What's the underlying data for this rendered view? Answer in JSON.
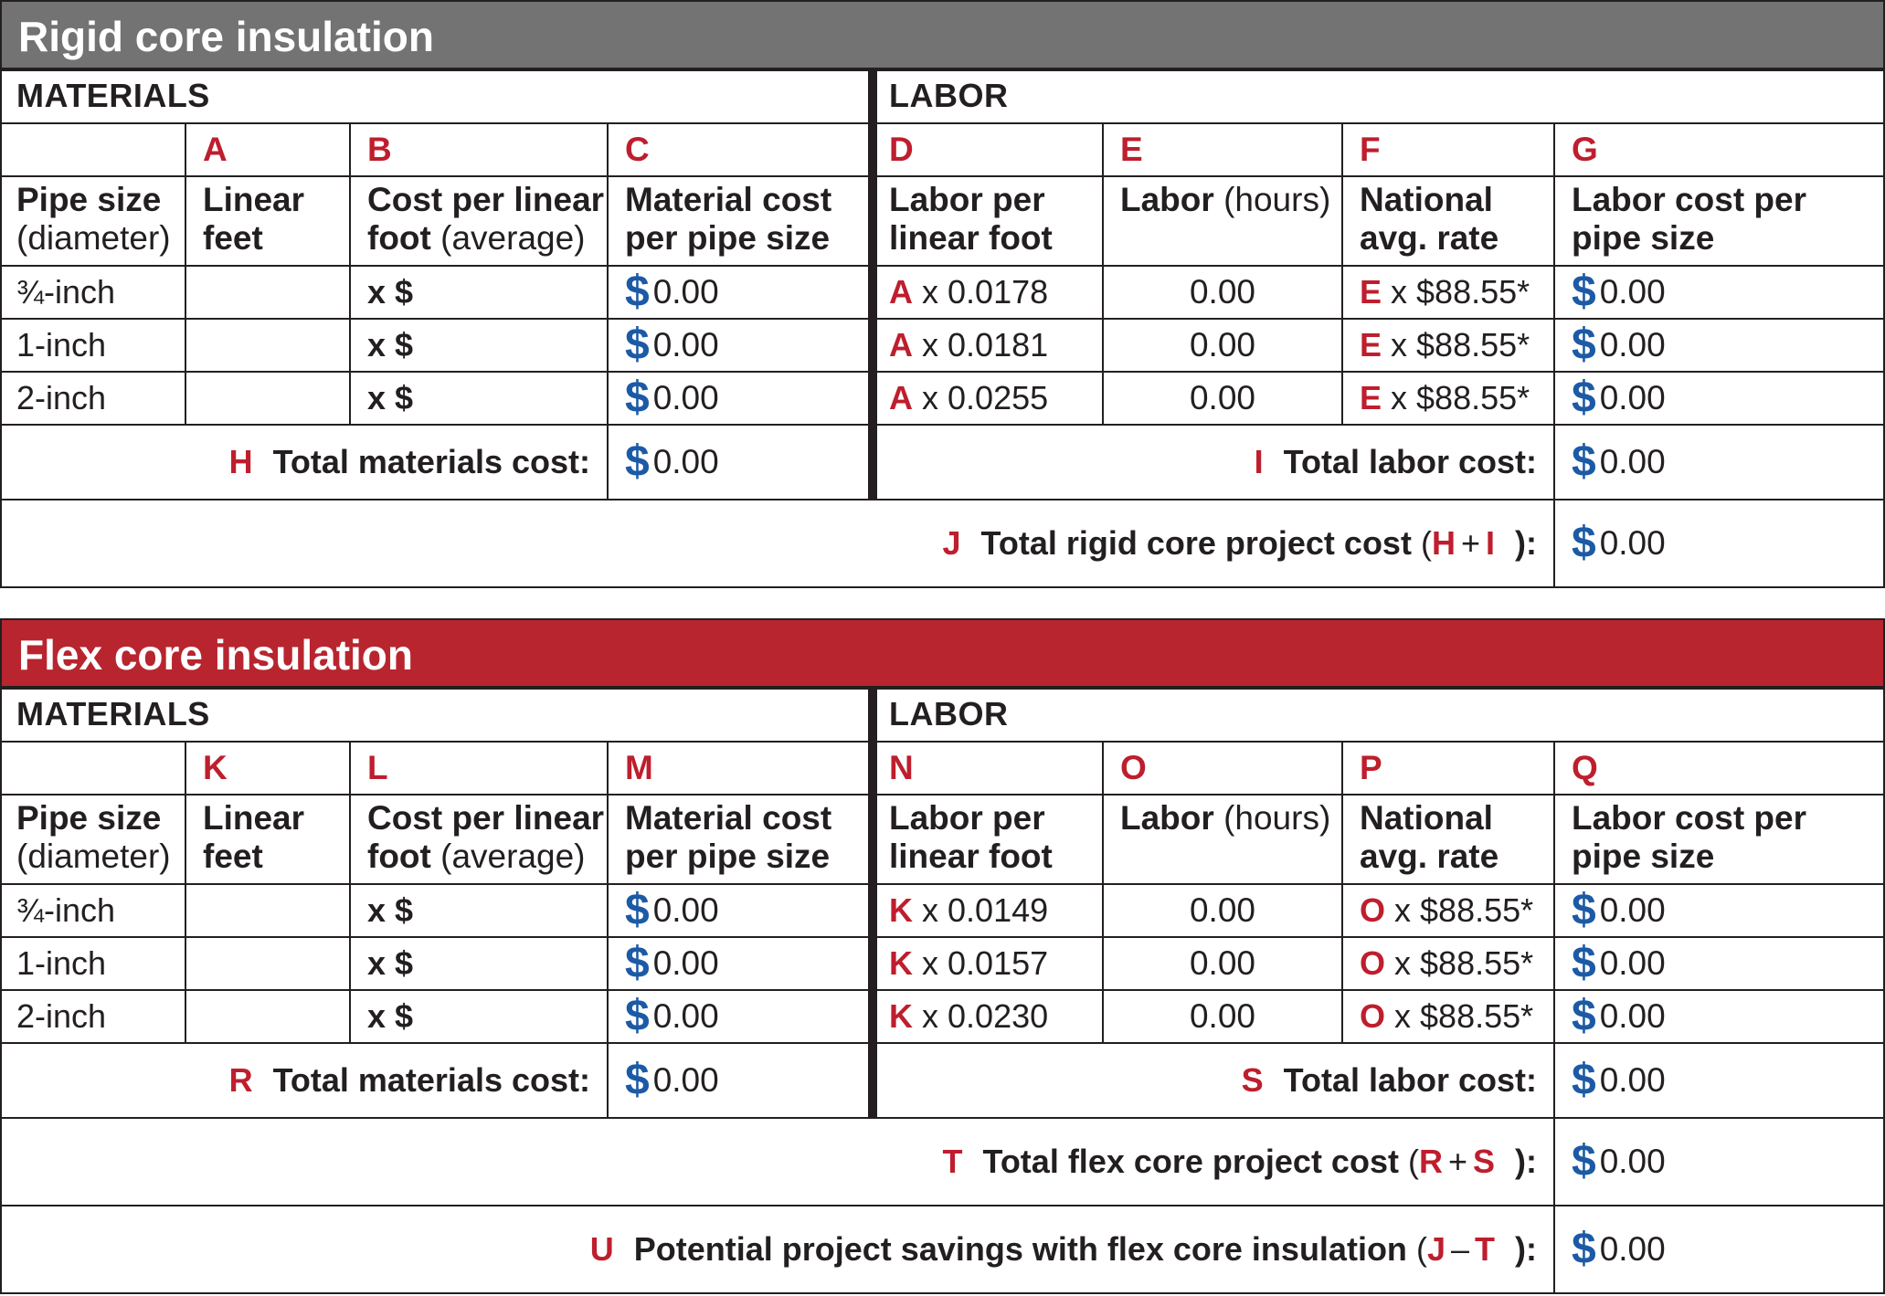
{
  "colors": {
    "rigid_band": "#737373",
    "flex_band": "#b8252f",
    "letter_red": "#be1e2d",
    "dollar_blue": "#1c5aa6"
  },
  "rigid": {
    "title": "Rigid core insulation",
    "materials_label": "MATERIALS",
    "labor_label": "LABOR",
    "letters": [
      "A",
      "B",
      "C",
      "D",
      "E",
      "F",
      "G"
    ],
    "headers": {
      "pipe_size": "Pipe size",
      "pipe_size_sub": "(diameter)",
      "linear_feet_1": "Linear",
      "linear_feet_2": "feet",
      "cost_per_1": "Cost per linear",
      "cost_per_2": "foot",
      "cost_per_sub": "(average)",
      "material_cost_1": "Material cost",
      "material_cost_2": "per pipe size",
      "labor_per_1": "Labor per",
      "labor_per_2": "linear foot",
      "labor_hours": "Labor",
      "labor_hours_sub": "(hours)",
      "national_1": "National",
      "national_2": "avg. rate",
      "labor_cost_1": "Labor cost per",
      "labor_cost_2": "pipe size"
    },
    "rows": [
      {
        "size": "¾-inch",
        "linear_feet": "",
        "cost_prefix": "x $",
        "material_cost": "0.00",
        "labor_letter": "A",
        "labor_factor": "x 0.0178",
        "hours": "0.00",
        "rate_letter": "E",
        "rate": "x $88.55*",
        "labor_cost": "0.00"
      },
      {
        "size": "1-inch",
        "linear_feet": "",
        "cost_prefix": "x $",
        "material_cost": "0.00",
        "labor_letter": "A",
        "labor_factor": "x 0.0181",
        "hours": "0.00",
        "rate_letter": "E",
        "rate": "x $88.55*",
        "labor_cost": "0.00"
      },
      {
        "size": "2-inch",
        "linear_feet": "",
        "cost_prefix": "x $",
        "material_cost": "0.00",
        "labor_letter": "A",
        "labor_factor": "x 0.0255",
        "hours": "0.00",
        "rate_letter": "E",
        "rate": "x $88.55*",
        "labor_cost": "0.00"
      }
    ],
    "total_materials": {
      "letter": "H",
      "label": "Total materials cost:",
      "value": "0.00"
    },
    "total_labor": {
      "letter": "I",
      "label": "Total labor cost:",
      "value": "0.00"
    },
    "total_project": {
      "letter": "J",
      "label": "Total rigid core project cost",
      "open": "(",
      "a": "H",
      "op": "+",
      "b": "I",
      "close": "):",
      "value": "0.00"
    }
  },
  "flex": {
    "title": "Flex core insulation",
    "materials_label": "MATERIALS",
    "labor_label": "LABOR",
    "letters": [
      "K",
      "L",
      "M",
      "N",
      "O",
      "P",
      "Q"
    ],
    "headers": {
      "pipe_size": "Pipe size",
      "pipe_size_sub": "(diameter)",
      "linear_feet_1": "Linear",
      "linear_feet_2": "feet",
      "cost_per_1": "Cost per linear",
      "cost_per_2": "foot",
      "cost_per_sub": "(average)",
      "material_cost_1": "Material cost",
      "material_cost_2": "per pipe size",
      "labor_per_1": "Labor per",
      "labor_per_2": "linear foot",
      "labor_hours": "Labor",
      "labor_hours_sub": "(hours)",
      "national_1": "National",
      "national_2": "avg. rate",
      "labor_cost_1": "Labor cost per",
      "labor_cost_2": "pipe size"
    },
    "rows": [
      {
        "size": "¾-inch",
        "linear_feet": "",
        "cost_prefix": "x $",
        "material_cost": "0.00",
        "labor_letter": "K",
        "labor_factor": "x 0.0149",
        "hours": "0.00",
        "rate_letter": "O",
        "rate": "x $88.55*",
        "labor_cost": "0.00"
      },
      {
        "size": "1-inch",
        "linear_feet": "",
        "cost_prefix": "x $",
        "material_cost": "0.00",
        "labor_letter": "K",
        "labor_factor": "x 0.0157",
        "hours": "0.00",
        "rate_letter": "O",
        "rate": "x $88.55*",
        "labor_cost": "0.00"
      },
      {
        "size": "2-inch",
        "linear_feet": "",
        "cost_prefix": "x $",
        "material_cost": "0.00",
        "labor_letter": "K",
        "labor_factor": "x 0.0230",
        "hours": "0.00",
        "rate_letter": "O",
        "rate": "x $88.55*",
        "labor_cost": "0.00"
      }
    ],
    "total_materials": {
      "letter": "R",
      "label": "Total materials cost:",
      "value": "0.00"
    },
    "total_labor": {
      "letter": "S",
      "label": "Total labor cost:",
      "value": "0.00"
    },
    "total_project": {
      "letter": "T",
      "label": "Total flex core project cost",
      "open": "(",
      "a": "R",
      "op": "+",
      "b": "S",
      "close": "):",
      "value": "0.00"
    },
    "savings": {
      "letter": "U",
      "label": "Potential project savings with flex core insulation",
      "open": "(",
      "a": "J",
      "op": "–",
      "b": "T",
      "close": "):",
      "value": "0.00"
    }
  }
}
